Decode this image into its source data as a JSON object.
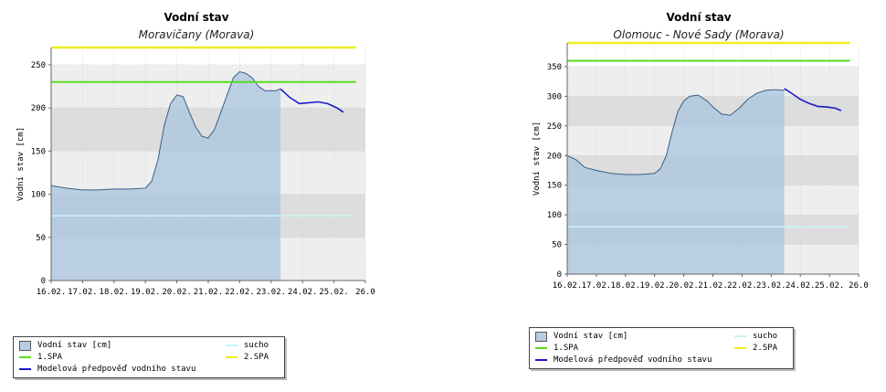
{
  "chart_data": [
    {
      "type": "area",
      "title": "Vodní stav",
      "subtitle": "Moravičany (Morava)",
      "ylabel": "Vodní stav [cm]",
      "ylim": [
        0,
        270
      ],
      "yticks": [
        0,
        50,
        100,
        150,
        200,
        250
      ],
      "xlim": [
        0,
        10
      ],
      "xtick_labels": [
        "16.02.",
        "17.02.",
        "18.02.",
        "19.02.",
        "20.02.",
        "21.02.",
        "22.02.",
        "23.02.",
        "24.02.",
        "25.02.",
        "26.0"
      ],
      "bands": [
        [
          50,
          100
        ],
        [
          150,
          200
        ]
      ],
      "thresholds": {
        "sucho": 75,
        "1.SPA": 230,
        "2.SPA": 270
      },
      "observed_end": 7.3,
      "series": [
        {
          "name": "Vodní stav [cm]",
          "kind": "observed",
          "x": [
            0,
            0.5,
            1,
            1.5,
            2,
            2.5,
            3,
            3.2,
            3.4,
            3.6,
            3.8,
            4.0,
            4.2,
            4.4,
            4.6,
            4.8,
            5.0,
            5.2,
            5.4,
            5.6,
            5.8,
            6.0,
            6.2,
            6.4,
            6.6,
            6.8,
            7.0,
            7.15,
            7.3
          ],
          "y": [
            110,
            107,
            105,
            105,
            106,
            106,
            107,
            115,
            140,
            180,
            205,
            215,
            213,
            195,
            178,
            167,
            165,
            175,
            195,
            215,
            235,
            242,
            240,
            235,
            225,
            220,
            220,
            220,
            222
          ]
        },
        {
          "name": "Modelová předpověď vodního stavu",
          "kind": "forecast",
          "x": [
            7.3,
            7.6,
            7.9,
            8.2,
            8.5,
            8.8,
            9.1,
            9.3
          ],
          "y": [
            222,
            212,
            205,
            206,
            207,
            205,
            200,
            195
          ]
        }
      ],
      "legend": [
        {
          "label": "Vodní stav [cm]",
          "kind": "box",
          "color": "#b7cde3"
        },
        {
          "label": "sucho",
          "kind": "line",
          "color": "#c8f4f4"
        },
        {
          "label": "1.SPA",
          "kind": "line",
          "color": "#55dd22"
        },
        {
          "label": "2.SPA",
          "kind": "line",
          "color": "#eeee22"
        },
        {
          "label": "Modelová předpověď vodního stavu",
          "kind": "line",
          "color": "#1a1acc"
        }
      ]
    },
    {
      "type": "area",
      "title": "Vodní stav",
      "subtitle": "Olomouc - Nové Sady (Morava)",
      "ylabel": "Vodní stav [cm]",
      "ylim": [
        0,
        390
      ],
      "yticks": [
        0,
        50,
        100,
        150,
        200,
        250,
        300,
        350
      ],
      "xlim": [
        0,
        10
      ],
      "xtick_labels": [
        "16.02.",
        "17.02.",
        "18.02.",
        "19.02.",
        "20.02.",
        "21.02.",
        "22.02.",
        "23.02.",
        "24.02.",
        "25.02.",
        "26.0"
      ],
      "bands": [
        [
          50,
          100
        ],
        [
          150,
          200
        ],
        [
          250,
          300
        ]
      ],
      "thresholds": {
        "sucho": 80,
        "1.SPA": 360,
        "2.SPA": 390
      },
      "observed_end": 7.45,
      "series": [
        {
          "name": "Vodní stav [cm]",
          "kind": "observed",
          "x": [
            0,
            0.3,
            0.6,
            1,
            1.5,
            2,
            2.5,
            3,
            3.2,
            3.4,
            3.6,
            3.8,
            4.0,
            4.2,
            4.5,
            4.8,
            5.0,
            5.3,
            5.6,
            5.9,
            6.2,
            6.5,
            6.8,
            7.0,
            7.2,
            7.45
          ],
          "y": [
            200,
            193,
            180,
            175,
            170,
            168,
            168,
            170,
            178,
            200,
            240,
            275,
            292,
            300,
            302,
            292,
            282,
            270,
            268,
            280,
            295,
            305,
            310,
            311,
            311,
            310
          ]
        },
        {
          "name": "Modelová předpověď vodního stavu",
          "kind": "forecast",
          "x": [
            7.45,
            7.7,
            8.0,
            8.3,
            8.6,
            8.9,
            9.2,
            9.4
          ],
          "y": [
            313,
            305,
            295,
            288,
            283,
            282,
            280,
            276
          ]
        }
      ],
      "legend": [
        {
          "label": "Vodní stav [cm]",
          "kind": "box",
          "color": "#b7cde3"
        },
        {
          "label": "sucho",
          "kind": "line",
          "color": "#c8f4f4"
        },
        {
          "label": "1.SPA",
          "kind": "line",
          "color": "#55dd22"
        },
        {
          "label": "2.SPA",
          "kind": "line",
          "color": "#eeee22"
        },
        {
          "label": "Modelová předpověď vodního stavu",
          "kind": "line",
          "color": "#1a1acc"
        }
      ]
    }
  ]
}
